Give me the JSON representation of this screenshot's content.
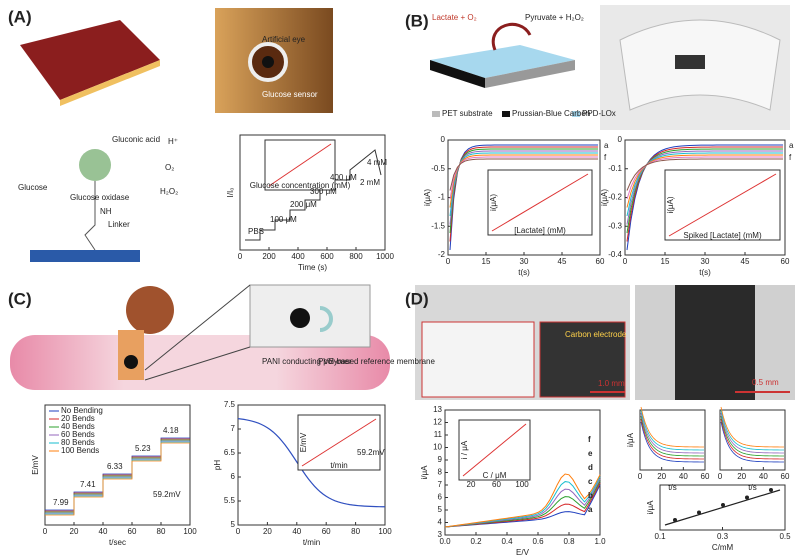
{
  "panels": [
    {
      "label": "(A)",
      "texts": [
        "Artificial eye",
        "Glucose sensor",
        "Glucose",
        "Glucose oxidase",
        "Gluconic acid",
        "H⁺",
        "O₂",
        "H₂O₂",
        "NH",
        "Linker"
      ]
    },
    {
      "label": "(B)",
      "texts": [
        "Lactate + O₂",
        "Pyruvate + H₂O₂",
        "PET substrate",
        "Prussian-Blue Carbon",
        "PPD-LOx"
      ]
    },
    {
      "label": "(C)",
      "texts": [
        "PANI conducting polymer",
        "PVB-based reference membrane"
      ]
    },
    {
      "label": "(D)",
      "texts": [
        "Carbon electrode",
        "1.0 mm",
        "0.5 mm"
      ]
    }
  ],
  "charts": [
    {
      "ylabel": "I/I₀",
      "xlabel": "Time (s)",
      "xticks": [
        "0",
        "200",
        "400",
        "600",
        "800",
        "1000"
      ],
      "yticks": [],
      "annotations": [
        "PBS",
        "100 μM",
        "200 μM",
        "300 μM",
        "400 μM",
        "2 mM",
        "4 mM"
      ],
      "inset_xlabel": "Glucose concentration (mM)"
    },
    {
      "ylabel": "i(μA)",
      "xlabel": "t(s)",
      "xticks": [
        "0",
        "15",
        "30",
        "45",
        "60"
      ],
      "yticks": [
        "-2",
        "-1.5",
        "-1",
        "-0.5",
        "0"
      ],
      "annotations": [
        "a",
        "f"
      ],
      "inset_xlabel": "[Lactate] (mM)",
      "inset_ylabel": "i(μA)"
    },
    {
      "ylabel": "i(μA)",
      "xlabel": "t(s)",
      "xticks": [
        "0",
        "15",
        "30",
        "45",
        "60"
      ],
      "yticks": [
        "-0.4",
        "-0.3",
        "-0.2",
        "-0.1",
        "0"
      ],
      "annotations": [
        "a",
        "f"
      ],
      "inset_xlabel": "Spiked [Lactate] (mM)",
      "inset_ylabel": "i(μA)"
    },
    {
      "ylabel": "E/mV",
      "xlabel": "t/sec",
      "xticks": [
        "0",
        "20",
        "40",
        "60",
        "80",
        "100"
      ],
      "yticks": [],
      "legend": [
        "No Bending",
        "20 Bends",
        "40 Bends",
        "60 Bends",
        "80 Bends",
        "100 Bends"
      ],
      "annotations": [
        "7.99",
        "7.41",
        "6.33",
        "5.23",
        "4.18",
        "59.2mV"
      ]
    },
    {
      "ylabel": "pH",
      "xlabel": "t/min",
      "xticks": [
        "0",
        "20",
        "40",
        "60",
        "80",
        "100"
      ],
      "yticks": [
        "5",
        "5.5",
        "6",
        "6.5",
        "7",
        "7.5"
      ],
      "annotations": [
        "59.2mV"
      ],
      "inset_xlabel": "t/min",
      "inset_ylabel": "E/mV"
    },
    {
      "ylabel": "i/μA",
      "xlabel": "E/V",
      "xticks": [
        "0.0",
        "0.2",
        "0.4",
        "0.6",
        "0.8",
        "1.0"
      ],
      "yticks": [
        "3",
        "4",
        "5",
        "6",
        "7",
        "8",
        "9",
        "10",
        "11",
        "12",
        "13"
      ],
      "annotations": [
        "a",
        "b",
        "c",
        "d",
        "e",
        "f"
      ],
      "inset_xlabel": "C / μM",
      "inset_ylabel": "i / μA",
      "inset_xticks": [
        "20",
        "60",
        "100"
      ]
    },
    {
      "ylabel": "i/μA",
      "xlabel": "t/s",
      "xticks": [
        "0",
        "20",
        "40",
        "60"
      ],
      "yticks": []
    },
    {
      "ylabel": "",
      "xlabel": "t/s",
      "xticks": [
        "0",
        "20",
        "40",
        "60"
      ],
      "yticks": []
    },
    {
      "ylabel": "i/μA",
      "xlabel": "C/mM",
      "xticks": [
        "0.1",
        "0.3",
        "0.5"
      ],
      "yticks": []
    }
  ]
}
